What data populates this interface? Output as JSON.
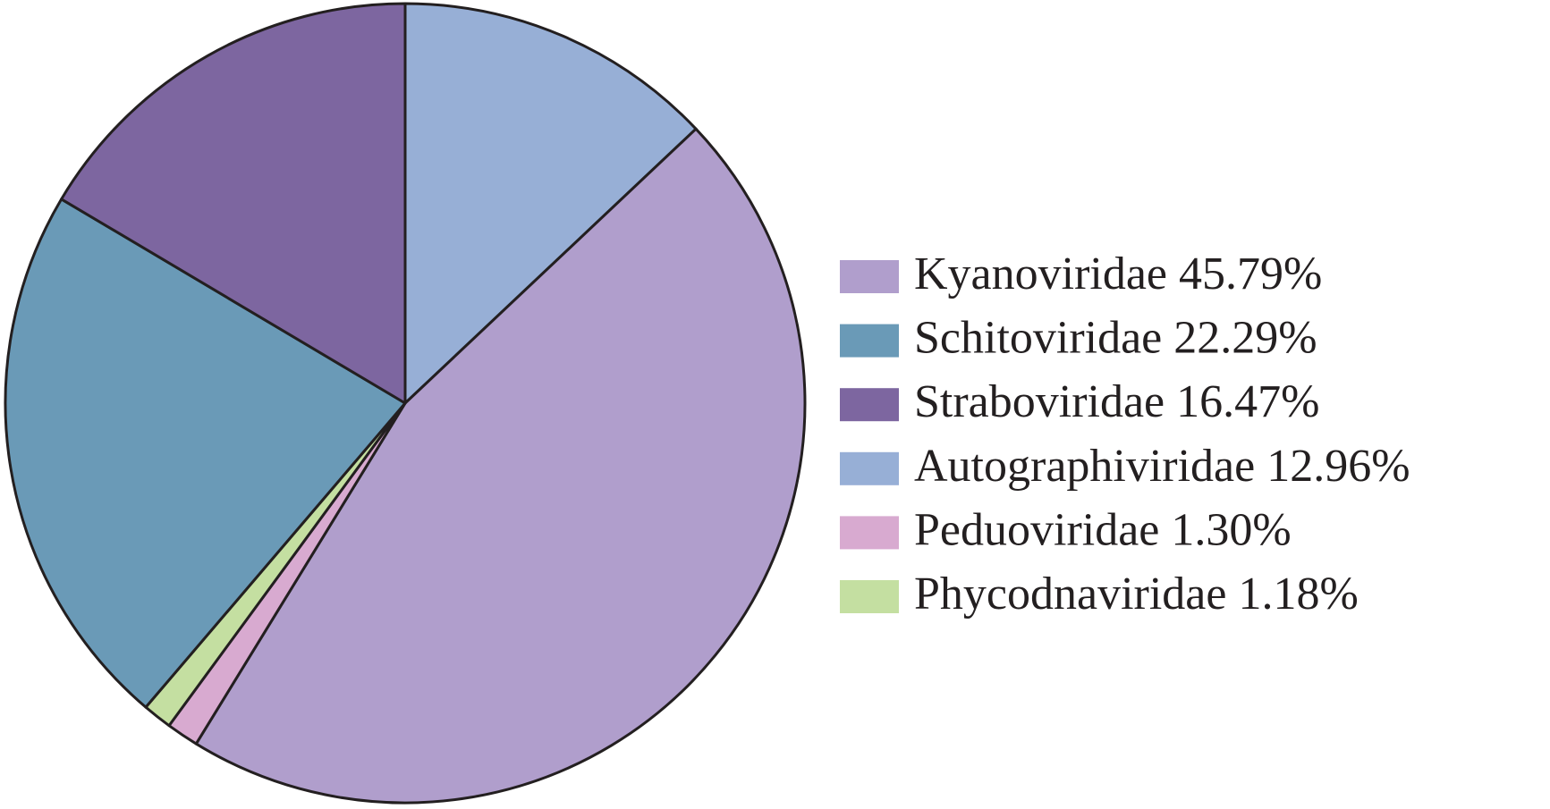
{
  "chart_data": {
    "type": "pie",
    "categories": [
      "Autographiviridae",
      "Kyanoviridae",
      "Peduoviridae",
      "Phycodnaviridae",
      "Schitoviridae",
      "Straboviridae"
    ],
    "values": [
      12.96,
      45.79,
      1.3,
      1.18,
      22.29,
      16.47
    ],
    "value_labels": [
      "12.96%",
      "45.79%",
      "1.30%",
      "1.18%",
      "22.29%",
      "16.47%"
    ],
    "colors": [
      "#97afd6",
      "#b09ecc",
      "#d8aad0",
      "#c4dfa1",
      "#6a9ab7",
      "#7d66a0"
    ],
    "legend_order": [
      1,
      4,
      5,
      0,
      2,
      3
    ],
    "legend": "right"
  }
}
